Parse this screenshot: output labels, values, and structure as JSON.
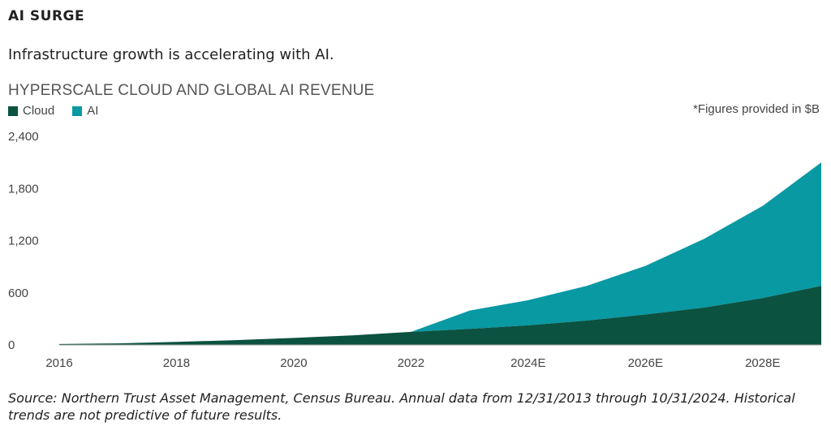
{
  "kicker": "AI SURGE",
  "headline": "Infrastructure growth is accelerating with AI.",
  "note": "*Figures provided in $B",
  "source": "Source: Northern Trust Asset Management, Census Bureau. Annual data from 12/31/2013 through 10/31/2024. Historical trends are not predictive of future results.",
  "colors": {
    "cloud": "#0b5240",
    "ai": "#0899a3"
  },
  "chart_data": {
    "type": "area",
    "stacked": true,
    "title": "HYPERSCALE CLOUD AND GLOBAL AI REVENUE",
    "xlabel": "",
    "ylabel": "",
    "x": [
      2016,
      2017,
      2018,
      2019,
      2020,
      2021,
      2022,
      2023,
      2024,
      2025,
      2026,
      2027,
      2028,
      2029
    ],
    "x_ticks": [
      {
        "x": 2016,
        "label": "2016"
      },
      {
        "x": 2018,
        "label": "2018"
      },
      {
        "x": 2020,
        "label": "2020"
      },
      {
        "x": 2022,
        "label": "2022"
      },
      {
        "x": 2024,
        "label": "2024E"
      },
      {
        "x": 2026,
        "label": "2026E"
      },
      {
        "x": 2028,
        "label": "2028E"
      }
    ],
    "y_ticks": [
      0,
      600,
      1200,
      1800,
      2400
    ],
    "y_tick_labels": [
      "0",
      "600",
      "1,200",
      "1,800",
      "2,400"
    ],
    "ylim": [
      0,
      2400
    ],
    "xlim": [
      2016,
      2029
    ],
    "grid": false,
    "legend_position": "top-left",
    "series": [
      {
        "name": "Cloud",
        "color": "#0b5240",
        "values": [
          10,
          18,
          35,
          55,
          80,
          110,
          150,
          185,
          225,
          280,
          350,
          430,
          540,
          680
        ]
      },
      {
        "name": "AI",
        "color": "#0899a3",
        "values": [
          0,
          0,
          0,
          0,
          0,
          0,
          0,
          210,
          290,
          400,
          560,
          790,
          1060,
          1420
        ]
      }
    ]
  }
}
